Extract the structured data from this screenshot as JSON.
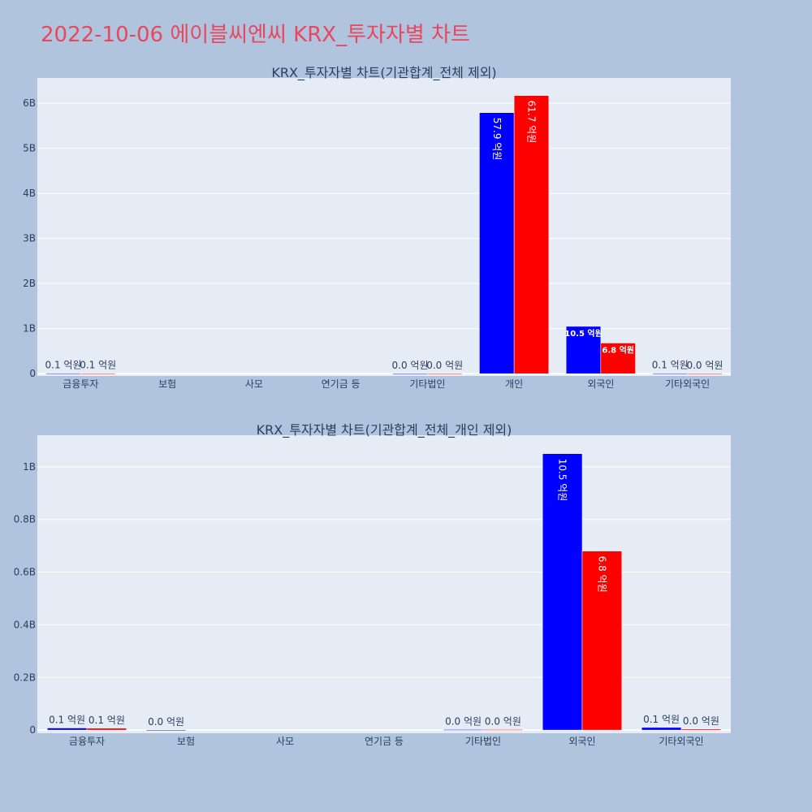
{
  "title": "2022-10-06 에이블씨엔씨 KRX_투자자별 차트",
  "colors": {
    "series_a": "#0000ff",
    "series_b": "#ff0000",
    "plot_bg": "#e5ecf6",
    "page_bg": "#b0c4de"
  },
  "chart_data": [
    {
      "type": "bar",
      "title": "KRX_투자자별 차트(기관합계_전체 제외)",
      "categories": [
        "금융투자",
        "보험",
        "사모",
        "연기금 등",
        "기타법인",
        "개인",
        "외국인",
        "기타외국인"
      ],
      "series": [
        {
          "color": "#0000ff",
          "values": [
            0.01,
            0.0,
            0.0,
            0.0,
            0.002,
            5.79,
            1.05,
            0.01
          ],
          "labels": [
            "0.1 억원",
            "",
            "",
            "",
            "0.0 억원",
            "57.9 억원",
            "10.5 억원",
            "0.1 억원"
          ]
        },
        {
          "color": "#ff0000",
          "values": [
            0.01,
            0.0,
            0.0,
            0.0,
            0.002,
            6.17,
            0.68,
            0.004
          ],
          "labels": [
            "0.1 억원",
            "",
            "",
            "",
            "0.0 억원",
            "61.7 억원",
            "6.8 억원",
            "0.0 억원"
          ]
        }
      ],
      "yticks": [
        0,
        1,
        2,
        3,
        4,
        5,
        6
      ],
      "ytick_labels": [
        "0",
        "1B",
        "2B",
        "3B",
        "4B",
        "5B",
        "6B"
      ],
      "ylim": [
        -0.05,
        6.56
      ]
    },
    {
      "type": "bar",
      "title": "KRX_투자자별 차트(기관합계_전체_개인 제외)",
      "categories": [
        "금융투자",
        "보험",
        "사모",
        "연기금 등",
        "기타법인",
        "외국인",
        "기타외국인"
      ],
      "series": [
        {
          "color": "#0000ff",
          "values": [
            0.008,
            0.0005,
            0.0,
            0.0,
            0.002,
            1.05,
            0.01
          ],
          "labels": [
            "0.1 억원",
            "0.0 억원",
            "",
            "",
            "0.0 억원",
            "10.5 억원",
            "0.1 억원"
          ]
        },
        {
          "color": "#ff0000",
          "values": [
            0.007,
            0.0,
            0.0,
            0.0,
            0.002,
            0.68,
            0.004
          ],
          "labels": [
            "0.1 억원",
            "",
            "",
            "",
            "0.0 억원",
            "6.8 억원",
            "0.0 억원"
          ]
        }
      ],
      "yticks": [
        0,
        0.2,
        0.4,
        0.6,
        0.8,
        1.0
      ],
      "ytick_labels": [
        "0",
        "0.2B",
        "0.4B",
        "0.6B",
        "0.8B",
        "1B"
      ],
      "ylim": [
        -0.012,
        1.12
      ]
    }
  ]
}
